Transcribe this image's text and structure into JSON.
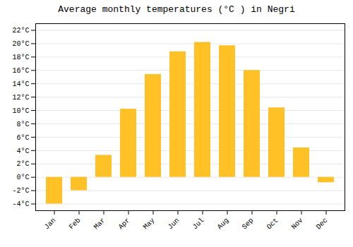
{
  "chart_data": {
    "type": "bar",
    "title": "Average monthly temperatures (°C ) in Negri",
    "categories": [
      "Jan",
      "Feb",
      "Mar",
      "Apr",
      "May",
      "Jun",
      "Jul",
      "Aug",
      "Sep",
      "Oct",
      "Nov",
      "Dec"
    ],
    "values": [
      -4,
      -2,
      3.3,
      10.2,
      15.4,
      18.8,
      20.2,
      19.7,
      16.0,
      10.4,
      4.4,
      -0.8
    ],
    "color": "#FFC125",
    "ylim": [
      -5,
      23
    ],
    "yticks": [
      {
        "value": -4,
        "label": "-4°C"
      },
      {
        "value": -2,
        "label": "-2°C"
      },
      {
        "value": 0,
        "label": "0°C"
      },
      {
        "value": 2,
        "label": "2°C"
      },
      {
        "value": 4,
        "label": "4°C"
      },
      {
        "value": 6,
        "label": "6°C"
      },
      {
        "value": 8,
        "label": "8°C"
      },
      {
        "value": 10,
        "label": "10°C"
      },
      {
        "value": 12,
        "label": "12°C"
      },
      {
        "value": 14,
        "label": "14°C"
      },
      {
        "value": 16,
        "label": "16°C"
      },
      {
        "value": 18,
        "label": "18°C"
      },
      {
        "value": 20,
        "label": "20°C"
      },
      {
        "value": 22,
        "label": "22°C"
      }
    ],
    "grid": true
  }
}
